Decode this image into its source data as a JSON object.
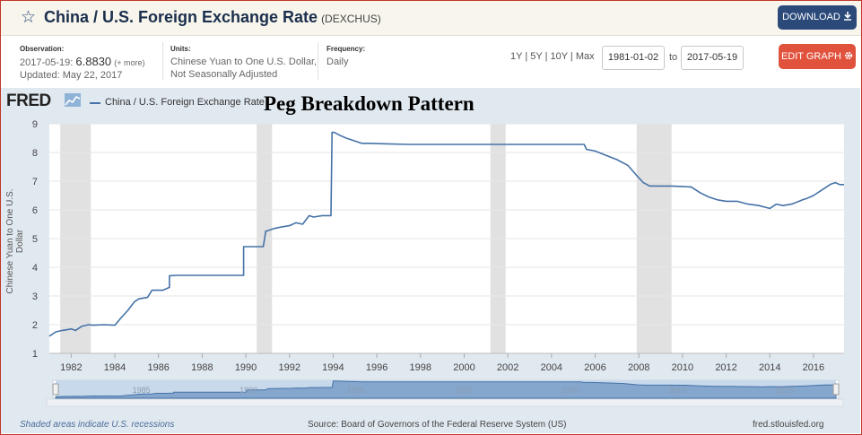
{
  "header": {
    "title": "China / U.S. Foreign Exchange Rate",
    "series_code": "(DEXCHUS)",
    "download_label": "DOWNLOAD"
  },
  "info": {
    "observation_label": "Observation:",
    "observation_date": "2017-05-19:",
    "observation_value": "6.8830",
    "observation_more": "(+ more)",
    "updated": "Updated: May 22, 2017",
    "units_label": "Units:",
    "units_line1": "Chinese Yuan to One U.S. Dollar,",
    "units_line2": "Not Seasonally Adjusted",
    "frequency_label": "Frequency:",
    "frequency_value": "Daily"
  },
  "controls": {
    "ranges": [
      "1Y",
      "5Y",
      "10Y",
      "Max"
    ],
    "start_date": "1981-01-02",
    "to_label": "to",
    "end_date": "2017-05-19",
    "edit_label": "EDIT GRAPH"
  },
  "graph": {
    "brand": "FRED",
    "legend": "China / U.S. Foreign Exchange Rate",
    "overlay_title": "Peg Breakdown Pattern",
    "source": "Source: Board of Governors of the Federal Reserve System (US)",
    "recession_note": "Shaded areas indicate U.S. recessions",
    "site": "fred.stlouisfed.org"
  },
  "colors": {
    "line": "#4572a7",
    "recession": "#e1e1e1",
    "plot_bg": "#ffffff",
    "area_bg": "#e1e9f0",
    "download": "#2b4a7a",
    "edit": "#e1523d"
  },
  "navigator_ticks": [
    "1985",
    "1990",
    "1995",
    "2000",
    "2005",
    "2010",
    "2015"
  ],
  "chart_data": {
    "type": "line",
    "title": "",
    "xlabel": "",
    "ylabel": "Chinese Yuan to One U.S. Dollar",
    "xlim": [
      1981.0,
      2017.4
    ],
    "ylim": [
      1,
      9
    ],
    "x_ticks": [
      "1982",
      "1984",
      "1986",
      "1988",
      "1990",
      "1992",
      "1994",
      "1996",
      "1998",
      "2000",
      "2002",
      "2004",
      "2006",
      "2008",
      "2010",
      "2012",
      "2014",
      "2016"
    ],
    "y_ticks": [
      "1",
      "2",
      "3",
      "4",
      "5",
      "6",
      "7",
      "8",
      "9"
    ],
    "grid": true,
    "legend_position": "top-left",
    "recessions": [
      [
        1981.5,
        1982.9
      ],
      [
        1990.5,
        1991.2
      ],
      [
        2001.2,
        2001.9
      ],
      [
        2007.9,
        2009.5
      ]
    ],
    "series": [
      {
        "name": "China / U.S. Foreign Exchange Rate",
        "x": [
          1981.0,
          1981.3,
          1981.6,
          1982.0,
          1982.2,
          1982.5,
          1982.8,
          1983.0,
          1983.5,
          1984.0,
          1984.3,
          1984.6,
          1984.9,
          1985.1,
          1985.5,
          1985.7,
          1985.9,
          1986.2,
          1986.5,
          1986.5,
          1986.8,
          1986.8,
          1987.5,
          1988.5,
          1989.5,
          1989.9,
          1989.9,
          1990.2,
          1990.5,
          1990.8,
          1990.9,
          1990.9,
          1991.3,
          1991.6,
          1992.0,
          1992.3,
          1992.6,
          1992.9,
          1993.1,
          1993.5,
          1993.9,
          1993.95,
          1994.05,
          1994.3,
          1994.6,
          1995.0,
          1995.3,
          1995.7,
          1996.5,
          1997.5,
          1998.5,
          2000.0,
          2002.0,
          2004.0,
          2005.5,
          2005.6,
          2006.0,
          2006.5,
          2007.0,
          2007.5,
          2007.9,
          2008.2,
          2008.5,
          2008.8,
          2009.5,
          2010.4,
          2010.8,
          2011.2,
          2011.6,
          2012.0,
          2012.5,
          2013.0,
          2013.5,
          2014.0,
          2014.3,
          2014.6,
          2015.0,
          2015.5,
          2015.7,
          2016.0,
          2016.4,
          2016.8,
          2017.0,
          2017.2,
          2017.4
        ],
        "y": [
          1.6,
          1.75,
          1.8,
          1.85,
          1.8,
          1.95,
          2.0,
          1.98,
          2.0,
          1.98,
          2.25,
          2.5,
          2.8,
          2.9,
          2.95,
          3.2,
          3.2,
          3.2,
          3.3,
          3.7,
          3.72,
          3.72,
          3.72,
          3.72,
          3.72,
          3.72,
          4.72,
          4.72,
          4.72,
          4.72,
          5.2,
          5.25,
          5.35,
          5.4,
          5.45,
          5.55,
          5.5,
          5.8,
          5.75,
          5.8,
          5.8,
          8.7,
          8.7,
          8.6,
          8.5,
          8.4,
          8.32,
          8.32,
          8.3,
          8.28,
          8.28,
          8.28,
          8.28,
          8.28,
          8.28,
          8.11,
          8.05,
          7.9,
          7.75,
          7.55,
          7.2,
          6.95,
          6.83,
          6.83,
          6.83,
          6.8,
          6.6,
          6.45,
          6.35,
          6.3,
          6.3,
          6.2,
          6.15,
          6.05,
          6.2,
          6.15,
          6.2,
          6.35,
          6.4,
          6.5,
          6.7,
          6.9,
          6.95,
          6.88,
          6.88
        ]
      }
    ]
  }
}
